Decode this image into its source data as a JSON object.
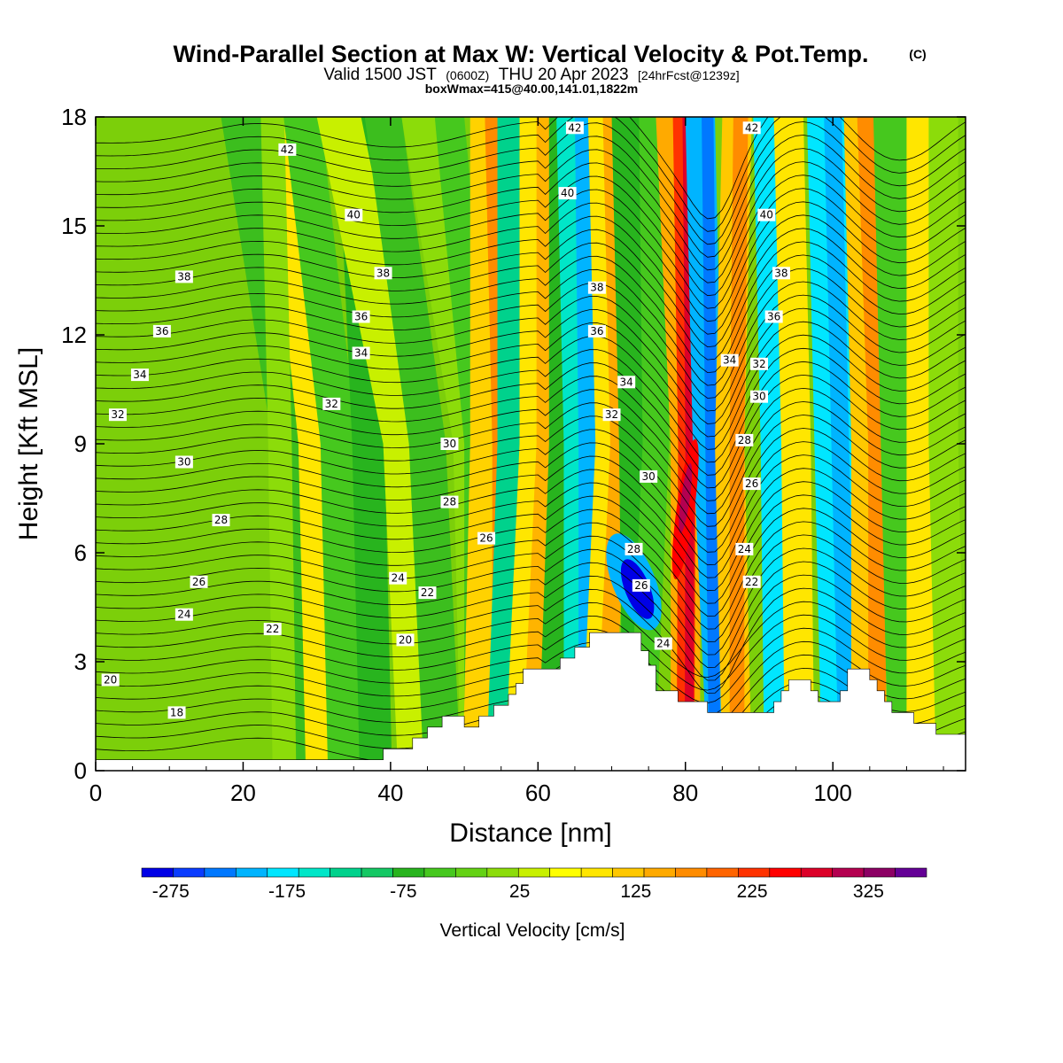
{
  "title": {
    "main": "Wind-Parallel Section at Max W: Vertical Velocity & Pot.Temp.",
    "copyright": "(C)",
    "valid_prefix": "Valid 1500 JST",
    "valid_zulu": "(0600Z)",
    "valid_date": "THU 20 Apr 2023",
    "forecast": "[24hrFcst@1239z]",
    "box_info": "boxWmax=415@40.00,141.01,1822m"
  },
  "chart_data": {
    "type": "heatmap",
    "xlabel": "Distance [nm]",
    "ylabel": "Height [Kft MSL]",
    "xlim": [
      0,
      118
    ],
    "ylim": [
      0,
      18
    ],
    "x_ticks": [
      0,
      20,
      40,
      60,
      80,
      100
    ],
    "y_ticks": [
      0,
      3,
      6,
      9,
      12,
      15,
      18
    ],
    "colorbar": {
      "title": "Vertical Velocity [cm/s]",
      "range": [
        -300,
        375
      ],
      "step": 25,
      "tick_values": [
        -275,
        -175,
        -75,
        25,
        125,
        225,
        325
      ],
      "tick_labels": [
        "-275",
        "-175",
        "-75",
        "25",
        "125",
        "225",
        "325"
      ],
      "colors": [
        "#0000e6",
        "#0a3cff",
        "#0078ff",
        "#00b4ff",
        "#00e6ff",
        "#00e6c8",
        "#00d28c",
        "#14c864",
        "#28b41e",
        "#46c81e",
        "#64d214",
        "#8cdc0a",
        "#c8f000",
        "#ffff00",
        "#ffe600",
        "#ffc800",
        "#ffaa00",
        "#ff8c00",
        "#ff6400",
        "#ff3200",
        "#ff0000",
        "#dc0028",
        "#b40050",
        "#8c0064",
        "#640096"
      ]
    },
    "terrain": [
      [
        0,
        0.3
      ],
      [
        39,
        0.3
      ],
      [
        39,
        0.6
      ],
      [
        40,
        0.6
      ],
      [
        40,
        0.6
      ],
      [
        43,
        0.6
      ],
      [
        43,
        0.9
      ],
      [
        45,
        0.9
      ],
      [
        45,
        1.2
      ],
      [
        47,
        1.2
      ],
      [
        47,
        1.5
      ],
      [
        50,
        1.5
      ],
      [
        50,
        1.2
      ],
      [
        52,
        1.2
      ],
      [
        52,
        1.5
      ],
      [
        54,
        1.5
      ],
      [
        54,
        1.8
      ],
      [
        56,
        1.8
      ],
      [
        56,
        2.1
      ],
      [
        57,
        2.1
      ],
      [
        57,
        2.4
      ],
      [
        58,
        2.4
      ],
      [
        58,
        2.8
      ],
      [
        63,
        2.8
      ],
      [
        63,
        3.1
      ],
      [
        65,
        3.1
      ],
      [
        65,
        3.4
      ],
      [
        67,
        3.4
      ],
      [
        67,
        3.8
      ],
      [
        74,
        3.8
      ],
      [
        74,
        3.3
      ],
      [
        75,
        3.3
      ],
      [
        75,
        2.9
      ],
      [
        76,
        2.9
      ],
      [
        76,
        2.2
      ],
      [
        79,
        2.2
      ],
      [
        79,
        1.9
      ],
      [
        83,
        1.9
      ],
      [
        83,
        1.6
      ],
      [
        92,
        1.6
      ],
      [
        92,
        1.9
      ],
      [
        93,
        1.9
      ],
      [
        93,
        2.2
      ],
      [
        94,
        2.2
      ],
      [
        94,
        2.5
      ],
      [
        97,
        2.5
      ],
      [
        97,
        2.2
      ],
      [
        98,
        2.2
      ],
      [
        98,
        1.9
      ],
      [
        101,
        1.9
      ],
      [
        101,
        2.2
      ],
      [
        102,
        2.2
      ],
      [
        102,
        2.8
      ],
      [
        105,
        2.8
      ],
      [
        105,
        2.5
      ],
      [
        106,
        2.5
      ],
      [
        106,
        2.2
      ],
      [
        107,
        2.2
      ],
      [
        107,
        1.9
      ],
      [
        108,
        1.9
      ],
      [
        108,
        1.6
      ],
      [
        111,
        1.6
      ],
      [
        111,
        1.3
      ],
      [
        114,
        1.3
      ],
      [
        114,
        1.0
      ],
      [
        118,
        1.0
      ]
    ],
    "contour_labels": [
      {
        "t": "42",
        "x": 26,
        "y": 17.1
      },
      {
        "t": "40",
        "x": 35,
        "y": 15.3
      },
      {
        "t": "38",
        "x": 12,
        "y": 13.6
      },
      {
        "t": "38",
        "x": 39,
        "y": 13.7
      },
      {
        "t": "36",
        "x": 36,
        "y": 12.5
      },
      {
        "t": "36",
        "x": 9,
        "y": 12.1
      },
      {
        "t": "34",
        "x": 36,
        "y": 11.5
      },
      {
        "t": "34",
        "x": 6,
        "y": 10.9
      },
      {
        "t": "32",
        "x": 32,
        "y": 10.1
      },
      {
        "t": "32",
        "x": 3,
        "y": 9.8
      },
      {
        "t": "30",
        "x": 12,
        "y": 8.5
      },
      {
        "t": "28",
        "x": 17,
        "y": 6.9
      },
      {
        "t": "26",
        "x": 14,
        "y": 5.2
      },
      {
        "t": "24",
        "x": 12,
        "y": 4.3
      },
      {
        "t": "22",
        "x": 24,
        "y": 3.9
      },
      {
        "t": "20",
        "x": 2,
        "y": 2.5
      },
      {
        "t": "18",
        "x": 11,
        "y": 1.6
      },
      {
        "t": "24",
        "x": 41,
        "y": 5.3
      },
      {
        "t": "22",
        "x": 45,
        "y": 4.9
      },
      {
        "t": "20",
        "x": 42,
        "y": 3.6
      },
      {
        "t": "30",
        "x": 48,
        "y": 9.0
      },
      {
        "t": "28",
        "x": 48,
        "y": 7.4
      },
      {
        "t": "26",
        "x": 53,
        "y": 6.4
      },
      {
        "t": "42",
        "x": 65,
        "y": 17.7
      },
      {
        "t": "40",
        "x": 64,
        "y": 15.9
      },
      {
        "t": "38",
        "x": 68,
        "y": 13.3
      },
      {
        "t": "36",
        "x": 68,
        "y": 12.1
      },
      {
        "t": "34",
        "x": 72,
        "y": 10.7
      },
      {
        "t": "32",
        "x": 70,
        "y": 9.8
      },
      {
        "t": "30",
        "x": 75,
        "y": 8.1
      },
      {
        "t": "28",
        "x": 73,
        "y": 6.1
      },
      {
        "t": "26",
        "x": 74,
        "y": 5.1
      },
      {
        "t": "24",
        "x": 77,
        "y": 3.5
      },
      {
        "t": "42",
        "x": 89,
        "y": 17.7
      },
      {
        "t": "40",
        "x": 91,
        "y": 15.3
      },
      {
        "t": "38",
        "x": 93,
        "y": 13.7
      },
      {
        "t": "36",
        "x": 92,
        "y": 12.5
      },
      {
        "t": "34",
        "x": 86,
        "y": 11.3
      },
      {
        "t": "32",
        "x": 90,
        "y": 11.2
      },
      {
        "t": "30",
        "x": 90,
        "y": 10.3
      },
      {
        "t": "28",
        "x": 88,
        "y": 9.1
      },
      {
        "t": "26",
        "x": 89,
        "y": 7.9
      },
      {
        "t": "24",
        "x": 88,
        "y": 6.1
      },
      {
        "t": "22",
        "x": 89,
        "y": 5.2
      }
    ]
  }
}
